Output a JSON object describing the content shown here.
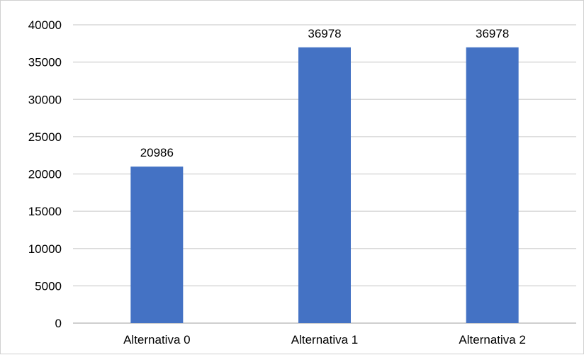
{
  "chart_data": {
    "type": "bar",
    "title": "",
    "xlabel": "",
    "ylabel": "",
    "categories": [
      "Alternativa 0",
      "Alternativa 1",
      "Alternativa 2"
    ],
    "values": [
      20986,
      36978,
      36978
    ],
    "data_labels": [
      "20986",
      "36978",
      "36978"
    ],
    "ylim": [
      0,
      40000
    ],
    "y_ticks": [
      0,
      5000,
      10000,
      15000,
      20000,
      25000,
      30000,
      35000,
      40000
    ],
    "grid": true,
    "legend": "none",
    "bar_color": "#4472c4",
    "grid_color": "#d9d9d9"
  }
}
